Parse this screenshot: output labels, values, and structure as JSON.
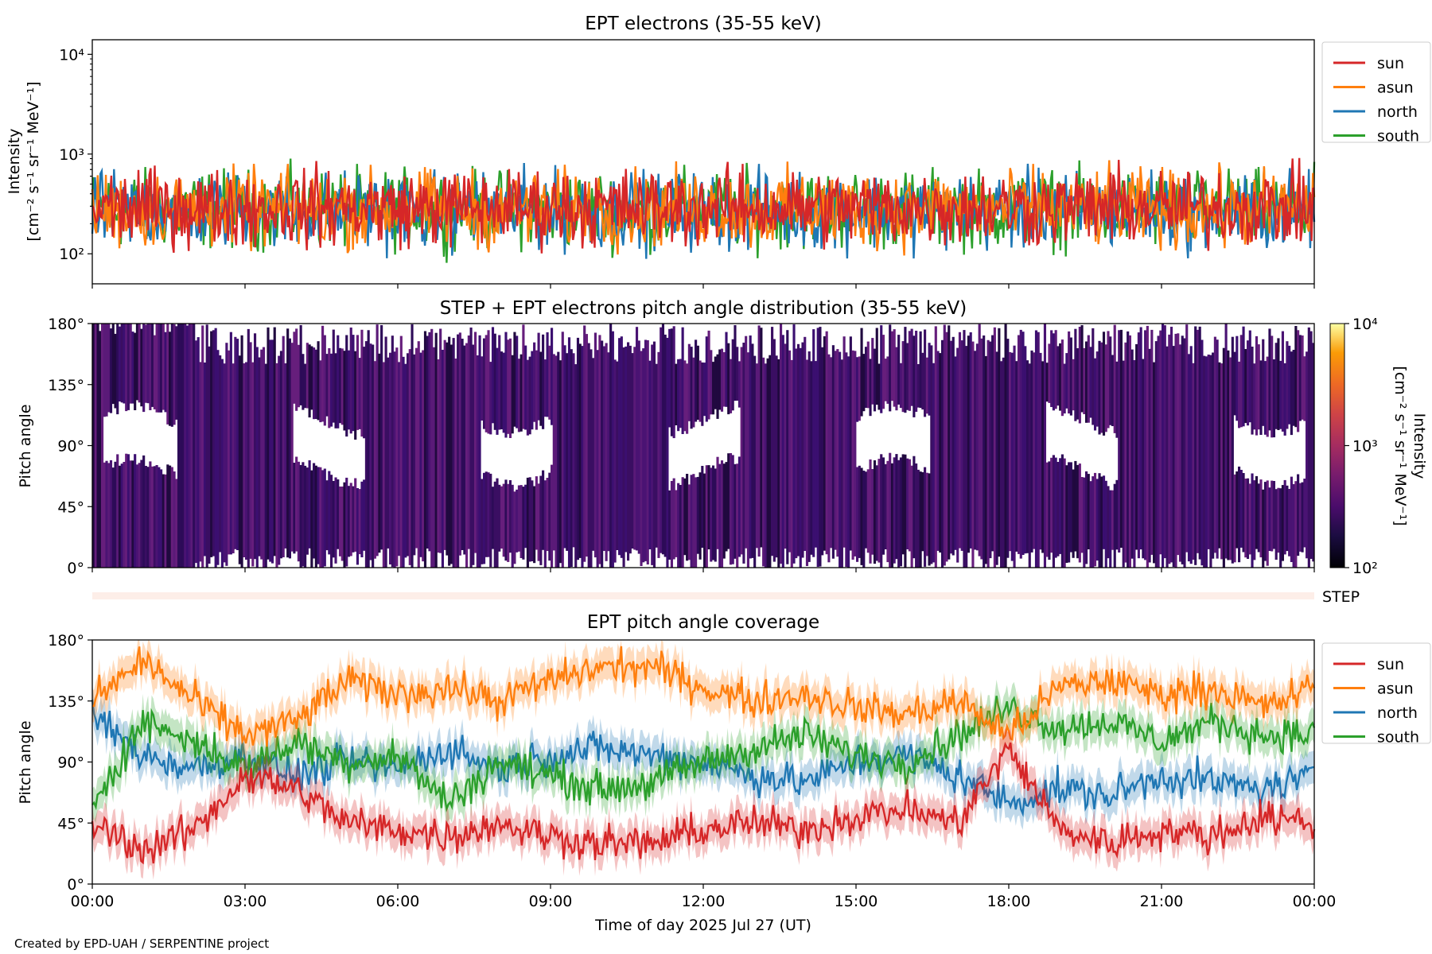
{
  "figure": {
    "credit": "Created by EPD-UAH / SERPENTINE project",
    "xlabel": "Time of day 2025 Jul 27 (UT)",
    "xticks": [
      "00:00",
      "03:00",
      "06:00",
      "09:00",
      "12:00",
      "15:00",
      "18:00",
      "21:00",
      "00:00"
    ]
  },
  "colors": {
    "sun": "#d62728",
    "asun": "#ff7f0e",
    "north": "#1f77b4",
    "south": "#2ca02c"
  },
  "chart_data": [
    {
      "type": "line",
      "title": "EPT electrons (35-55 keV)",
      "ylabel": [
        "Intensity",
        "[cm⁻² s⁻¹ sr⁻¹ MeV⁻¹]"
      ],
      "yscale": "log",
      "ylim": [
        50,
        14000
      ],
      "yticks": [
        {
          "value": 100,
          "label": "10²"
        },
        {
          "value": 1000,
          "label": "10³"
        },
        {
          "value": 10000,
          "label": "10⁴"
        }
      ],
      "xlim": [
        0,
        24
      ],
      "x_unit": "hours UT",
      "legend_position": "outside-top-right",
      "series": [
        {
          "name": "sun",
          "color": "#d62728",
          "typical_range": [
            60,
            700
          ],
          "median": 290
        },
        {
          "name": "asun",
          "color": "#ff7f0e",
          "typical_range": [
            60,
            750
          ],
          "median": 280
        },
        {
          "name": "north",
          "color": "#1f77b4",
          "typical_range": [
            55,
            800
          ],
          "median": 270
        },
        {
          "name": "south",
          "color": "#2ca02c",
          "typical_range": [
            55,
            850
          ],
          "median": 280
        }
      ]
    },
    {
      "type": "heatmap",
      "title": "STEP + EPT electrons pitch angle distribution (35-55 keV)",
      "ylabel": "Pitch angle",
      "ylim": [
        0,
        180
      ],
      "yticks": [
        "0°",
        "45°",
        "90°",
        "135°",
        "180°"
      ],
      "xlim": [
        0,
        24
      ],
      "colorbar": {
        "label": [
          "Intensity",
          "[cm⁻² s⁻¹ sr⁻¹ MeV⁻¹]"
        ],
        "scale": "log",
        "range": [
          100,
          10000
        ],
        "ticks": [
          "10²",
          "10³",
          "10⁴"
        ],
        "colormap": "inferno"
      },
      "typical_intensity": 250
    },
    {
      "type": "band",
      "label": "STEP",
      "color": "#fdeee8"
    },
    {
      "type": "line",
      "title": "EPT pitch angle coverage",
      "ylabel": "Pitch angle",
      "ylim": [
        0,
        180
      ],
      "yticks": [
        "0°",
        "45°",
        "90°",
        "135°",
        "180°"
      ],
      "xlim": [
        0,
        24
      ],
      "legend_position": "outside-top-right",
      "series": [
        {
          "name": "sun",
          "color": "#d62728",
          "hours": [
            0,
            1,
            2,
            3,
            4,
            5,
            6,
            7,
            8,
            9,
            10,
            11,
            12,
            13,
            14,
            15,
            16,
            17,
            18,
            19,
            20,
            21,
            22,
            23,
            24
          ],
          "pitch": [
            45,
            25,
            40,
            80,
            70,
            45,
            40,
            35,
            45,
            35,
            30,
            30,
            40,
            45,
            40,
            50,
            55,
            45,
            100,
            40,
            30,
            40,
            35,
            50,
            45
          ]
        },
        {
          "name": "asun",
          "color": "#ff7f0e",
          "hours": [
            0,
            1,
            2,
            3,
            4,
            5,
            6,
            7,
            8,
            9,
            10,
            11,
            12,
            13,
            14,
            15,
            16,
            17,
            18,
            19,
            20,
            21,
            22,
            23,
            24
          ],
          "pitch": [
            135,
            165,
            135,
            110,
            120,
            150,
            140,
            145,
            135,
            150,
            160,
            160,
            145,
            135,
            140,
            130,
            125,
            135,
            110,
            145,
            150,
            140,
            145,
            130,
            145
          ]
        },
        {
          "name": "north",
          "color": "#1f77b4",
          "hours": [
            0,
            1,
            2,
            3,
            4,
            5,
            6,
            7,
            8,
            9,
            10,
            11,
            12,
            13,
            14,
            15,
            16,
            17,
            18,
            19,
            20,
            21,
            22,
            23,
            24
          ],
          "pitch": [
            125,
            95,
            85,
            95,
            80,
            90,
            85,
            100,
            85,
            95,
            100,
            95,
            90,
            80,
            75,
            90,
            95,
            80,
            60,
            70,
            65,
            80,
            75,
            70,
            80
          ]
        },
        {
          "name": "south",
          "color": "#2ca02c",
          "hours": [
            0,
            1,
            2,
            3,
            4,
            5,
            6,
            7,
            8,
            9,
            10,
            11,
            12,
            13,
            14,
            15,
            16,
            17,
            18,
            19,
            20,
            21,
            22,
            23,
            24
          ],
          "pitch": [
            60,
            120,
            105,
            85,
            105,
            90,
            95,
            60,
            90,
            80,
            70,
            75,
            90,
            100,
            110,
            95,
            90,
            110,
            130,
            115,
            120,
            105,
            120,
            110,
            110
          ]
        }
      ]
    }
  ]
}
